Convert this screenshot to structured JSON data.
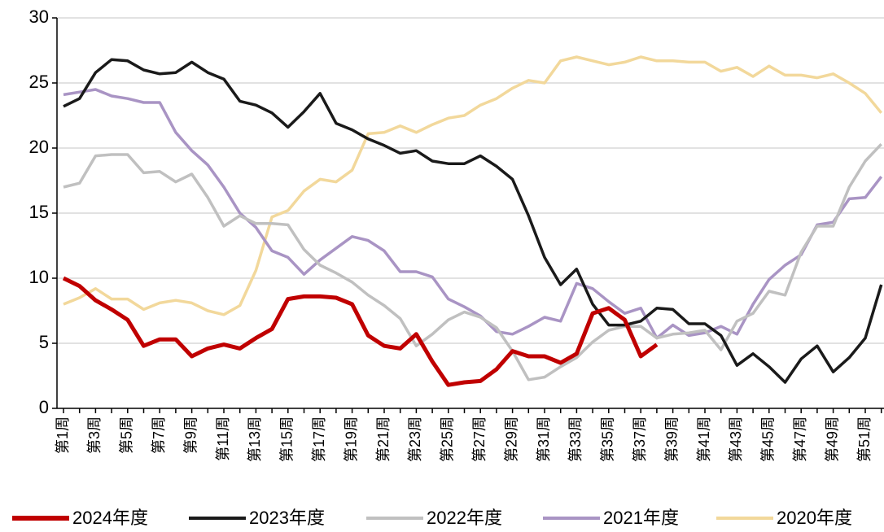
{
  "chart_data": {
    "type": "line",
    "categories": [
      "第1周",
      null,
      "第3周",
      null,
      "第5周",
      null,
      "第7周",
      null,
      "第9周",
      null,
      "第11周",
      null,
      "第13周",
      null,
      "第15周",
      null,
      "第17周",
      null,
      "第19周",
      null,
      "第21周",
      null,
      "第23周",
      null,
      "第25周",
      null,
      "第27周",
      null,
      "第29周",
      null,
      "第31周",
      null,
      "第33周",
      null,
      "第35周",
      null,
      "第37周",
      null,
      "第39周",
      null,
      "第41周",
      null,
      "第43周",
      null,
      "第45周",
      null,
      "第47周",
      null,
      "第49周",
      null,
      "第51周",
      null
    ],
    "series": [
      {
        "name": "2020年度",
        "color": "#f2d89b",
        "values": [
          8,
          8.5,
          9.2,
          8.4,
          8.4,
          7.6,
          8.1,
          8.3,
          8.1,
          7.5,
          7.2,
          7.9,
          10.6,
          14.7,
          15.2,
          16.7,
          17.6,
          17.4,
          18.3,
          21.1,
          21.2,
          21.7,
          21.2,
          21.8,
          22.3,
          22.5,
          23.3,
          23.8,
          24.6,
          25.2,
          25,
          26.7,
          27,
          26.7,
          26.4,
          26.6,
          27,
          26.7,
          26.7,
          26.6,
          26.6,
          25.9,
          26.2,
          25.5,
          26.3,
          25.6,
          25.6,
          25.4,
          25.7,
          25.0,
          24.2,
          22.7
        ]
      },
      {
        "name": "2021年度",
        "color": "#a994c4",
        "values": [
          24.1,
          24.3,
          24.5,
          24,
          23.8,
          23.5,
          23.5,
          21.2,
          19.8,
          18.7,
          17,
          15,
          13.9,
          12.1,
          11.6,
          10.3,
          11.4,
          12.3,
          13.2,
          12.9,
          12.1,
          10.5,
          10.5,
          10.1,
          8.4,
          7.8,
          7.1,
          5.9,
          5.7,
          6.3,
          7,
          6.7,
          9.6,
          9.2,
          8.2,
          7.3,
          7.7,
          5.4,
          6.4,
          5.6,
          5.8,
          6.3,
          5.7,
          8,
          9.9,
          11,
          11.8,
          14.1,
          14.3,
          16.1,
          16.2,
          17.8
        ]
      },
      {
        "name": "2022年度",
        "color": "#c0c0c0",
        "values": [
          17,
          17.3,
          19.4,
          19.5,
          19.5,
          18.1,
          18.2,
          17.4,
          18,
          16.2,
          14,
          14.8,
          14.2,
          14.2,
          14.1,
          12.2,
          11,
          10.4,
          9.7,
          8.7,
          7.9,
          6.9,
          4.8,
          5.7,
          6.8,
          7.4,
          7,
          6.2,
          4.4,
          2.2,
          2.4,
          3.2,
          3.9,
          5.1,
          6,
          6.3,
          6.3,
          5.4,
          5.7,
          5.8,
          6,
          4.5,
          6.7,
          7.3,
          9,
          8.7,
          12,
          14,
          14,
          17,
          19,
          20.3
        ]
      },
      {
        "name": "2023年度",
        "color": "#1a1a1a",
        "values": [
          23.2,
          23.8,
          25.8,
          26.8,
          26.7,
          26,
          25.7,
          25.8,
          26.6,
          25.8,
          25.3,
          23.6,
          23.3,
          22.7,
          21.6,
          22.8,
          24.2,
          21.9,
          21.4,
          20.7,
          20.2,
          19.6,
          19.8,
          19,
          18.8,
          18.8,
          19.4,
          18.6,
          17.6,
          14.8,
          11.6,
          9.5,
          10.7,
          8,
          6.4,
          6.4,
          6.7,
          7.7,
          7.6,
          6.5,
          6.5,
          5.6,
          3.3,
          4.2,
          3.2,
          2,
          3.8,
          4.8,
          2.8,
          3.9,
          5.4,
          9.5
        ]
      },
      {
        "name": "2024年度",
        "color": "#c00000",
        "values": [
          10,
          9.4,
          8.3,
          7.6,
          6.8,
          4.8,
          5.3,
          5.3,
          4,
          4.6,
          4.9,
          4.6,
          5.4,
          6.1,
          8.4,
          8.6,
          8.6,
          8.5,
          8,
          5.6,
          4.8,
          4.6,
          5.7,
          3.6,
          1.8,
          2,
          2.1,
          3,
          4.4,
          4,
          4,
          3.5,
          4.2,
          7.3,
          7.7,
          6.8,
          4,
          4.9,
          null,
          null,
          null,
          null,
          null,
          null,
          null,
          null,
          null,
          null,
          null,
          null,
          null,
          null
        ]
      }
    ],
    "ylim": [
      0,
      30
    ],
    "yticks": [
      0,
      5,
      10,
      15,
      20,
      25,
      30
    ],
    "grid": true
  }
}
